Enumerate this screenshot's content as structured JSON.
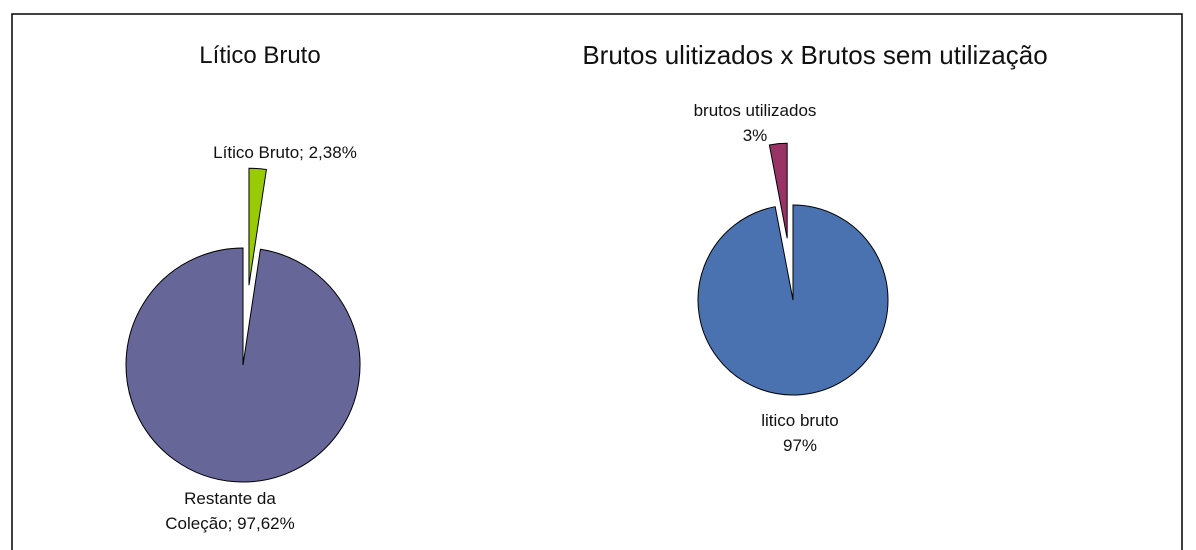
{
  "chart_data": [
    {
      "type": "pie",
      "title": "Lítico Bruto",
      "direction": "clockwise",
      "values": [
        2.38,
        97.62
      ],
      "value_labels": [
        "Lítico Bruto; 2,38%",
        "Restante da Coleção; 97,62%"
      ],
      "colors": [
        "#99cc00",
        "#666699"
      ]
    },
    {
      "type": "pie",
      "title": "Brutos ulitizados x Brutos sem utilização",
      "direction": "counterclockwise",
      "categories": [
        "brutos utilizados",
        "litico bruto"
      ],
      "values": [
        3,
        97
      ],
      "value_labels": [
        "3%",
        "97%"
      ],
      "colors": [
        "#993366",
        "#4a72b0"
      ]
    }
  ]
}
